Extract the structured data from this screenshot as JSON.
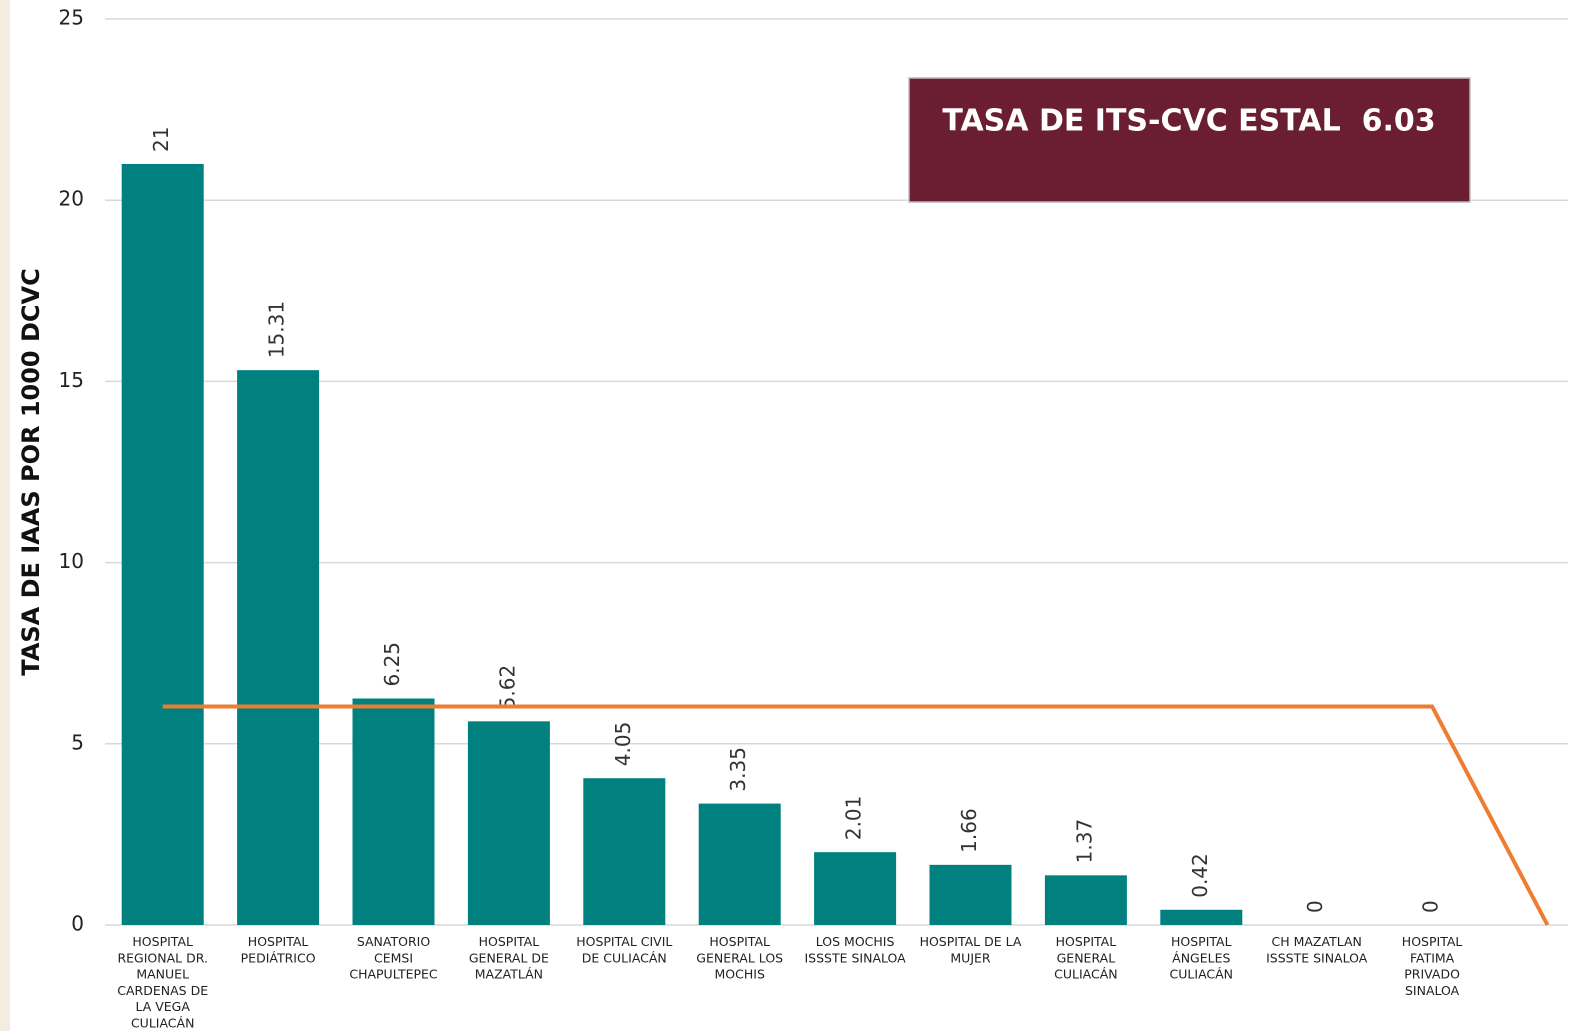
{
  "chart_data": {
    "type": "bar",
    "y_label": "TASA DE IAAS POR 1000 DCVC",
    "annotation": "TASA DE ITS-CVC ESTAL  6.03",
    "categories": [
      "HOSPITAL\nREGIONAL DR.\nMANUEL\nCARDENAS DE\nLA VEGA\nCULIACÁN",
      "HOSPITAL\nPEDIÁTRICO",
      "SANATORIO\nCEMSI\nCHAPULTEPEC",
      "HOSPITAL\nGENERAL DE\nMAZATLÁN",
      "HOSPITAL CIVIL\nDE CULIACÁN",
      "HOSPITAL\nGENERAL LOS\nMOCHIS",
      "LOS MOCHIS\nISSSTE SINALOA",
      "HOSPITAL DE LA\nMUJER",
      "HOSPITAL\nGENERAL\nCULIACÁN",
      "HOSPITAL\nÁNGELES\nCULIACÁN",
      "CH MAZATLAN\nISSSTE SINALOA",
      "HOSPITAL\nFATIMA\nPRIVADO\nSINALOA",
      null
    ],
    "series": [
      {
        "type": "bar",
        "color": "#00807f",
        "values": [
          21,
          15.31,
          6.25,
          5.62,
          4.05,
          3.35,
          2.01,
          1.66,
          1.37,
          0.42,
          0,
          0,
          null
        ]
      },
      {
        "type": "line",
        "color": "#ed7d31",
        "values": [
          6.03,
          6.03,
          6.03,
          6.03,
          6.03,
          6.03,
          6.03,
          6.03,
          6.03,
          6.03,
          6.03,
          6.03,
          0
        ]
      }
    ],
    "ylim": [
      0,
      25
    ],
    "yticks": [
      0,
      5,
      10,
      15,
      20,
      25
    ],
    "grid": true
  }
}
